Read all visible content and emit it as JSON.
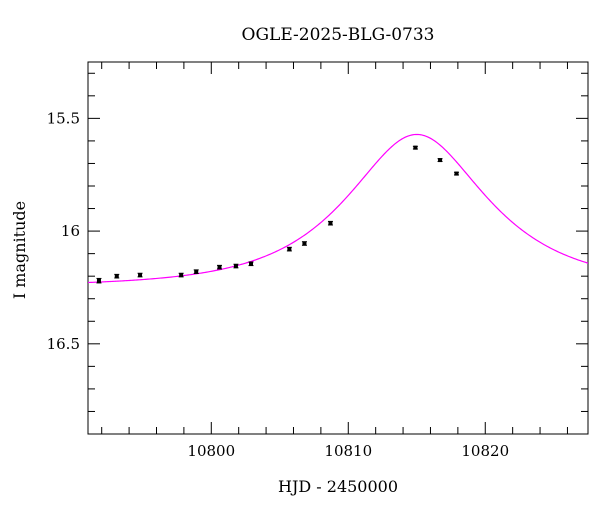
{
  "chart_data": {
    "type": "scatter",
    "title": "OGLE-2025-BLG-0733",
    "xlabel": "HJD - 2450000",
    "ylabel": "I magnitude",
    "xlim": [
      10791,
      10827.5
    ],
    "ylim": [
      16.9,
      15.25
    ],
    "y_inverted": true,
    "grid": false,
    "x_ticks": [
      10800,
      10810,
      10820
    ],
    "x_tick_labels": [
      "10800",
      "10810",
      "10820"
    ],
    "y_ticks": [
      15.5,
      16,
      16.5
    ],
    "y_tick_labels": [
      "15.5",
      "16",
      "16.5"
    ],
    "x_minor_step": 2,
    "y_minor_step": 0.1,
    "series": [
      {
        "kind": "points",
        "color": "#000000",
        "x": [
          10791.8,
          10793.1,
          10794.8,
          10797.8,
          10798.9,
          10800.6,
          10801.8,
          10802.9,
          10805.7,
          10806.8,
          10808.7,
          10814.9,
          10816.7,
          10817.9
        ],
        "y": [
          16.22,
          16.2,
          16.195,
          16.195,
          16.18,
          16.16,
          16.155,
          16.145,
          16.08,
          16.055,
          15.965,
          15.63,
          15.685,
          15.745
        ],
        "err": [
          0.01,
          0.008,
          0.008,
          0.008,
          0.008,
          0.008,
          0.008,
          0.008,
          0.008,
          0.008,
          0.008,
          0.006,
          0.006,
          0.006
        ]
      },
      {
        "kind": "model",
        "color": "#ff00ff",
        "model": "pspl",
        "t0": 10815.0,
        "tE": 8.0,
        "u0": 0.61,
        "I_base": 16.245
      }
    ]
  }
}
